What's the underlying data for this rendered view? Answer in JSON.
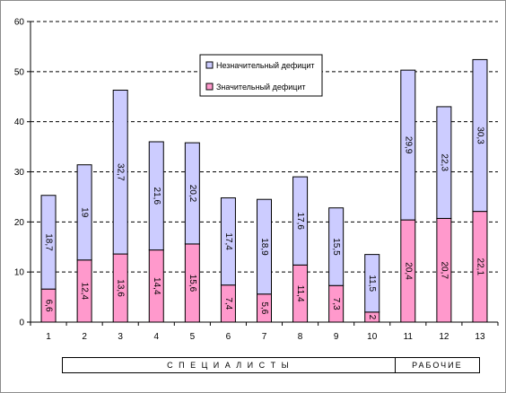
{
  "chart_data": {
    "type": "bar",
    "stacked": true,
    "categories": [
      "1",
      "2",
      "3",
      "4",
      "5",
      "6",
      "7",
      "8",
      "9",
      "10",
      "11",
      "12",
      "13"
    ],
    "series": [
      {
        "name": "Значительный дефицит",
        "color": "#ff99cc",
        "values": [
          6.6,
          12.4,
          13.6,
          14.4,
          15.6,
          7.4,
          5.6,
          11.4,
          7.3,
          2,
          20.4,
          20.7,
          22.1
        ],
        "labels": [
          "6,6",
          "12,4",
          "13,6",
          "14,4",
          "15,6",
          "7,4",
          "5,6",
          "11,4",
          "7,3",
          "2",
          "20,4",
          "20,7",
          "22,1"
        ]
      },
      {
        "name": "Незначительный дефицит",
        "color": "#ccccff",
        "values": [
          18.7,
          19,
          32.7,
          21.6,
          20.2,
          17.4,
          18.9,
          17.6,
          15.5,
          11.5,
          29.9,
          22.3,
          30.3
        ],
        "labels": [
          "18,7",
          "19",
          "32,7",
          "21,6",
          "20,2",
          "17,4",
          "18,9",
          "17,6",
          "15,5",
          "11,5",
          "29,9",
          "22,3",
          "30,3"
        ]
      }
    ],
    "ylim": [
      0,
      60
    ],
    "yticks": [
      0,
      10,
      20,
      30,
      40,
      50,
      60
    ],
    "grid": "horizontal dashed",
    "legend_position": "top-center",
    "legend_order": [
      "Незначительный дефицит",
      "Значительный дефицит"
    ],
    "groups": [
      {
        "label": "С П Е Ц И А Л И С Т Ы",
        "from": "1",
        "to": "10"
      },
      {
        "label": "РАБОЧИЕ",
        "from": "11",
        "to": "13"
      }
    ]
  }
}
